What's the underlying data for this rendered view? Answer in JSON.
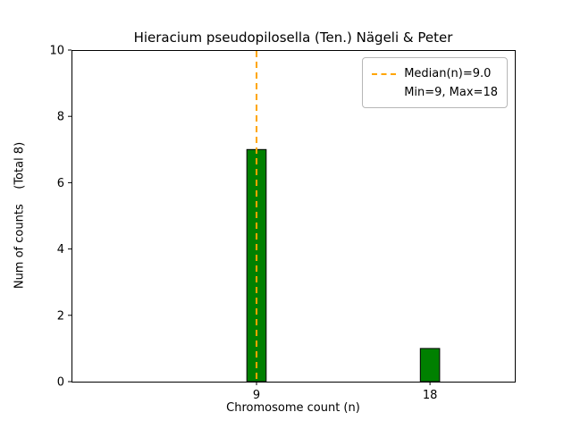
{
  "chart_data": {
    "type": "bar",
    "title": "Hieracium pseudopilosella (Ten.) Nägeli & Peter",
    "xlabel": "Chromosome count (n)",
    "ylabel": "Num of counts    (Total 8)",
    "total_counts": 8,
    "x": [
      9,
      18
    ],
    "values": [
      7,
      1
    ],
    "bar_color": "#008000",
    "bar_edge_color": "#000000",
    "bar_width_data": 1.0,
    "xlim": [
      -0.6,
      22.4
    ],
    "ylim": [
      0,
      10
    ],
    "yticks": [
      0,
      2,
      4,
      6,
      8,
      10
    ],
    "xticks": [
      9,
      18
    ],
    "grid": false,
    "median_line": {
      "x": 9,
      "median_value": 9.0,
      "color": "#ffa500",
      "style": "dashed",
      "label": "Median(n)=9.0"
    },
    "legend": {
      "position": "upper right",
      "entries": [
        {
          "handle": "dashed-line",
          "color": "#ffa500",
          "label": "Median(n)=9.0"
        },
        {
          "handle": "none",
          "label": "Min=9, Max=18"
        }
      ]
    },
    "min": 9,
    "max": 18
  }
}
